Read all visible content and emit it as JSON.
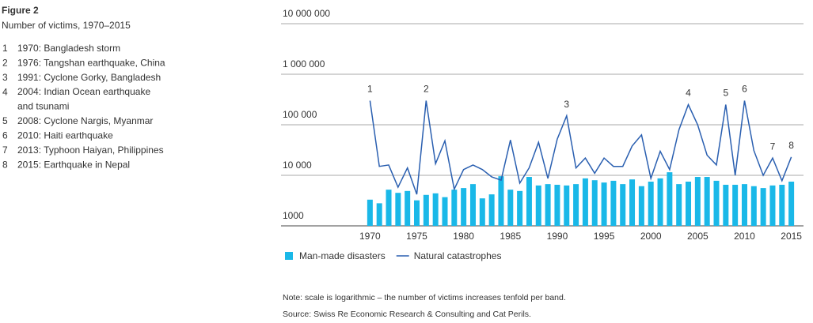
{
  "chart_data": {
    "type": "bar",
    "title": "Figure 2",
    "subtitle": "Number of victims, 1970–2015",
    "events": [
      {
        "number": "1",
        "text": "1970: Bangladesh storm"
      },
      {
        "number": "2",
        "text": "1976: Tangshan earthquake, China"
      },
      {
        "number": "3",
        "text": "1991: Cyclone Gorky, Bangladesh"
      },
      {
        "number": "4",
        "text": "2004: Indian Ocean earthquake\nand tsunami"
      },
      {
        "number": "5",
        "text": "2008: Cyclone Nargis, Myanmar"
      },
      {
        "number": "6",
        "text": "2010: Haiti earthquake"
      },
      {
        "number": "7",
        "text": "2013: Typhoon Haiyan, Philippines"
      },
      {
        "number": "8",
        "text": "2015: Earthquake in Nepal"
      }
    ],
    "x": [
      1970,
      1971,
      1972,
      1973,
      1974,
      1975,
      1976,
      1977,
      1978,
      1979,
      1980,
      1981,
      1982,
      1983,
      1984,
      1985,
      1986,
      1987,
      1988,
      1989,
      1990,
      1991,
      1992,
      1993,
      1994,
      1995,
      1996,
      1997,
      1998,
      1999,
      2000,
      2001,
      2002,
      2003,
      2004,
      2005,
      2006,
      2007,
      2008,
      2009,
      2010,
      2011,
      2012,
      2013,
      2014,
      2015
    ],
    "series": [
      {
        "name": "Man-made disasters",
        "type": "bar",
        "color": "#1ab8e8",
        "values": [
          3300,
          2800,
          5200,
          4500,
          4900,
          3200,
          4100,
          4400,
          3700,
          5200,
          5600,
          6700,
          3500,
          4200,
          9600,
          5200,
          4900,
          9300,
          6300,
          6700,
          6500,
          6300,
          6700,
          8700,
          8000,
          7200,
          7800,
          6700,
          8300,
          6100,
          7500,
          8700,
          11500,
          6700,
          7500,
          9300,
          9300,
          7800,
          6500,
          6500,
          6700,
          6100,
          5600,
          6300,
          6500,
          7500
        ]
      },
      {
        "name": "Natural catastrophes",
        "type": "line",
        "color": "#2a5fb0",
        "values": [
          300000,
          15000,
          16000,
          5800,
          14000,
          4200,
          300000,
          17000,
          48000,
          5300,
          13000,
          16000,
          13000,
          9300,
          8000,
          50000,
          7000,
          14000,
          45000,
          8700,
          52000,
          150000,
          14000,
          22000,
          11000,
          22000,
          15000,
          15000,
          38000,
          63000,
          8700,
          30000,
          13000,
          80000,
          250000,
          100000,
          25000,
          16000,
          250000,
          10000,
          300000,
          31000,
          10000,
          22000,
          7800,
          23000
        ]
      }
    ],
    "annotations": [
      {
        "text": "1",
        "x": 1970
      },
      {
        "text": "2",
        "x": 1976
      },
      {
        "text": "3",
        "x": 1991
      },
      {
        "text": "4",
        "x": 2004
      },
      {
        "text": "5",
        "x": 2008
      },
      {
        "text": "6",
        "x": 2010
      },
      {
        "text": "7",
        "x": 2013
      },
      {
        "text": "8",
        "x": 2015
      }
    ],
    "log_scale": true,
    "grid": true,
    "xlim": [
      1960.5,
      2016.3
    ],
    "xticks": [
      1970,
      1975,
      1980,
      1985,
      1990,
      1995,
      2000,
      2005,
      2010,
      2015
    ],
    "ylim": [
      1000,
      10000000
    ],
    "yticks": [
      1000,
      {
        "value": 10000,
        "label": "10 000"
      },
      {
        "value": 100000,
        "label": "100 000"
      },
      {
        "value": 1000000,
        "label": "1 000 000"
      },
      {
        "value": 10000000,
        "label": "10 000 000"
      }
    ],
    "legend": "bottom",
    "notes": [
      "Note: scale is logarithmic – the number of victims increases tenfold per band.",
      "Source: Swiss Re Economic Research & Consulting and Cat Perils."
    ]
  }
}
